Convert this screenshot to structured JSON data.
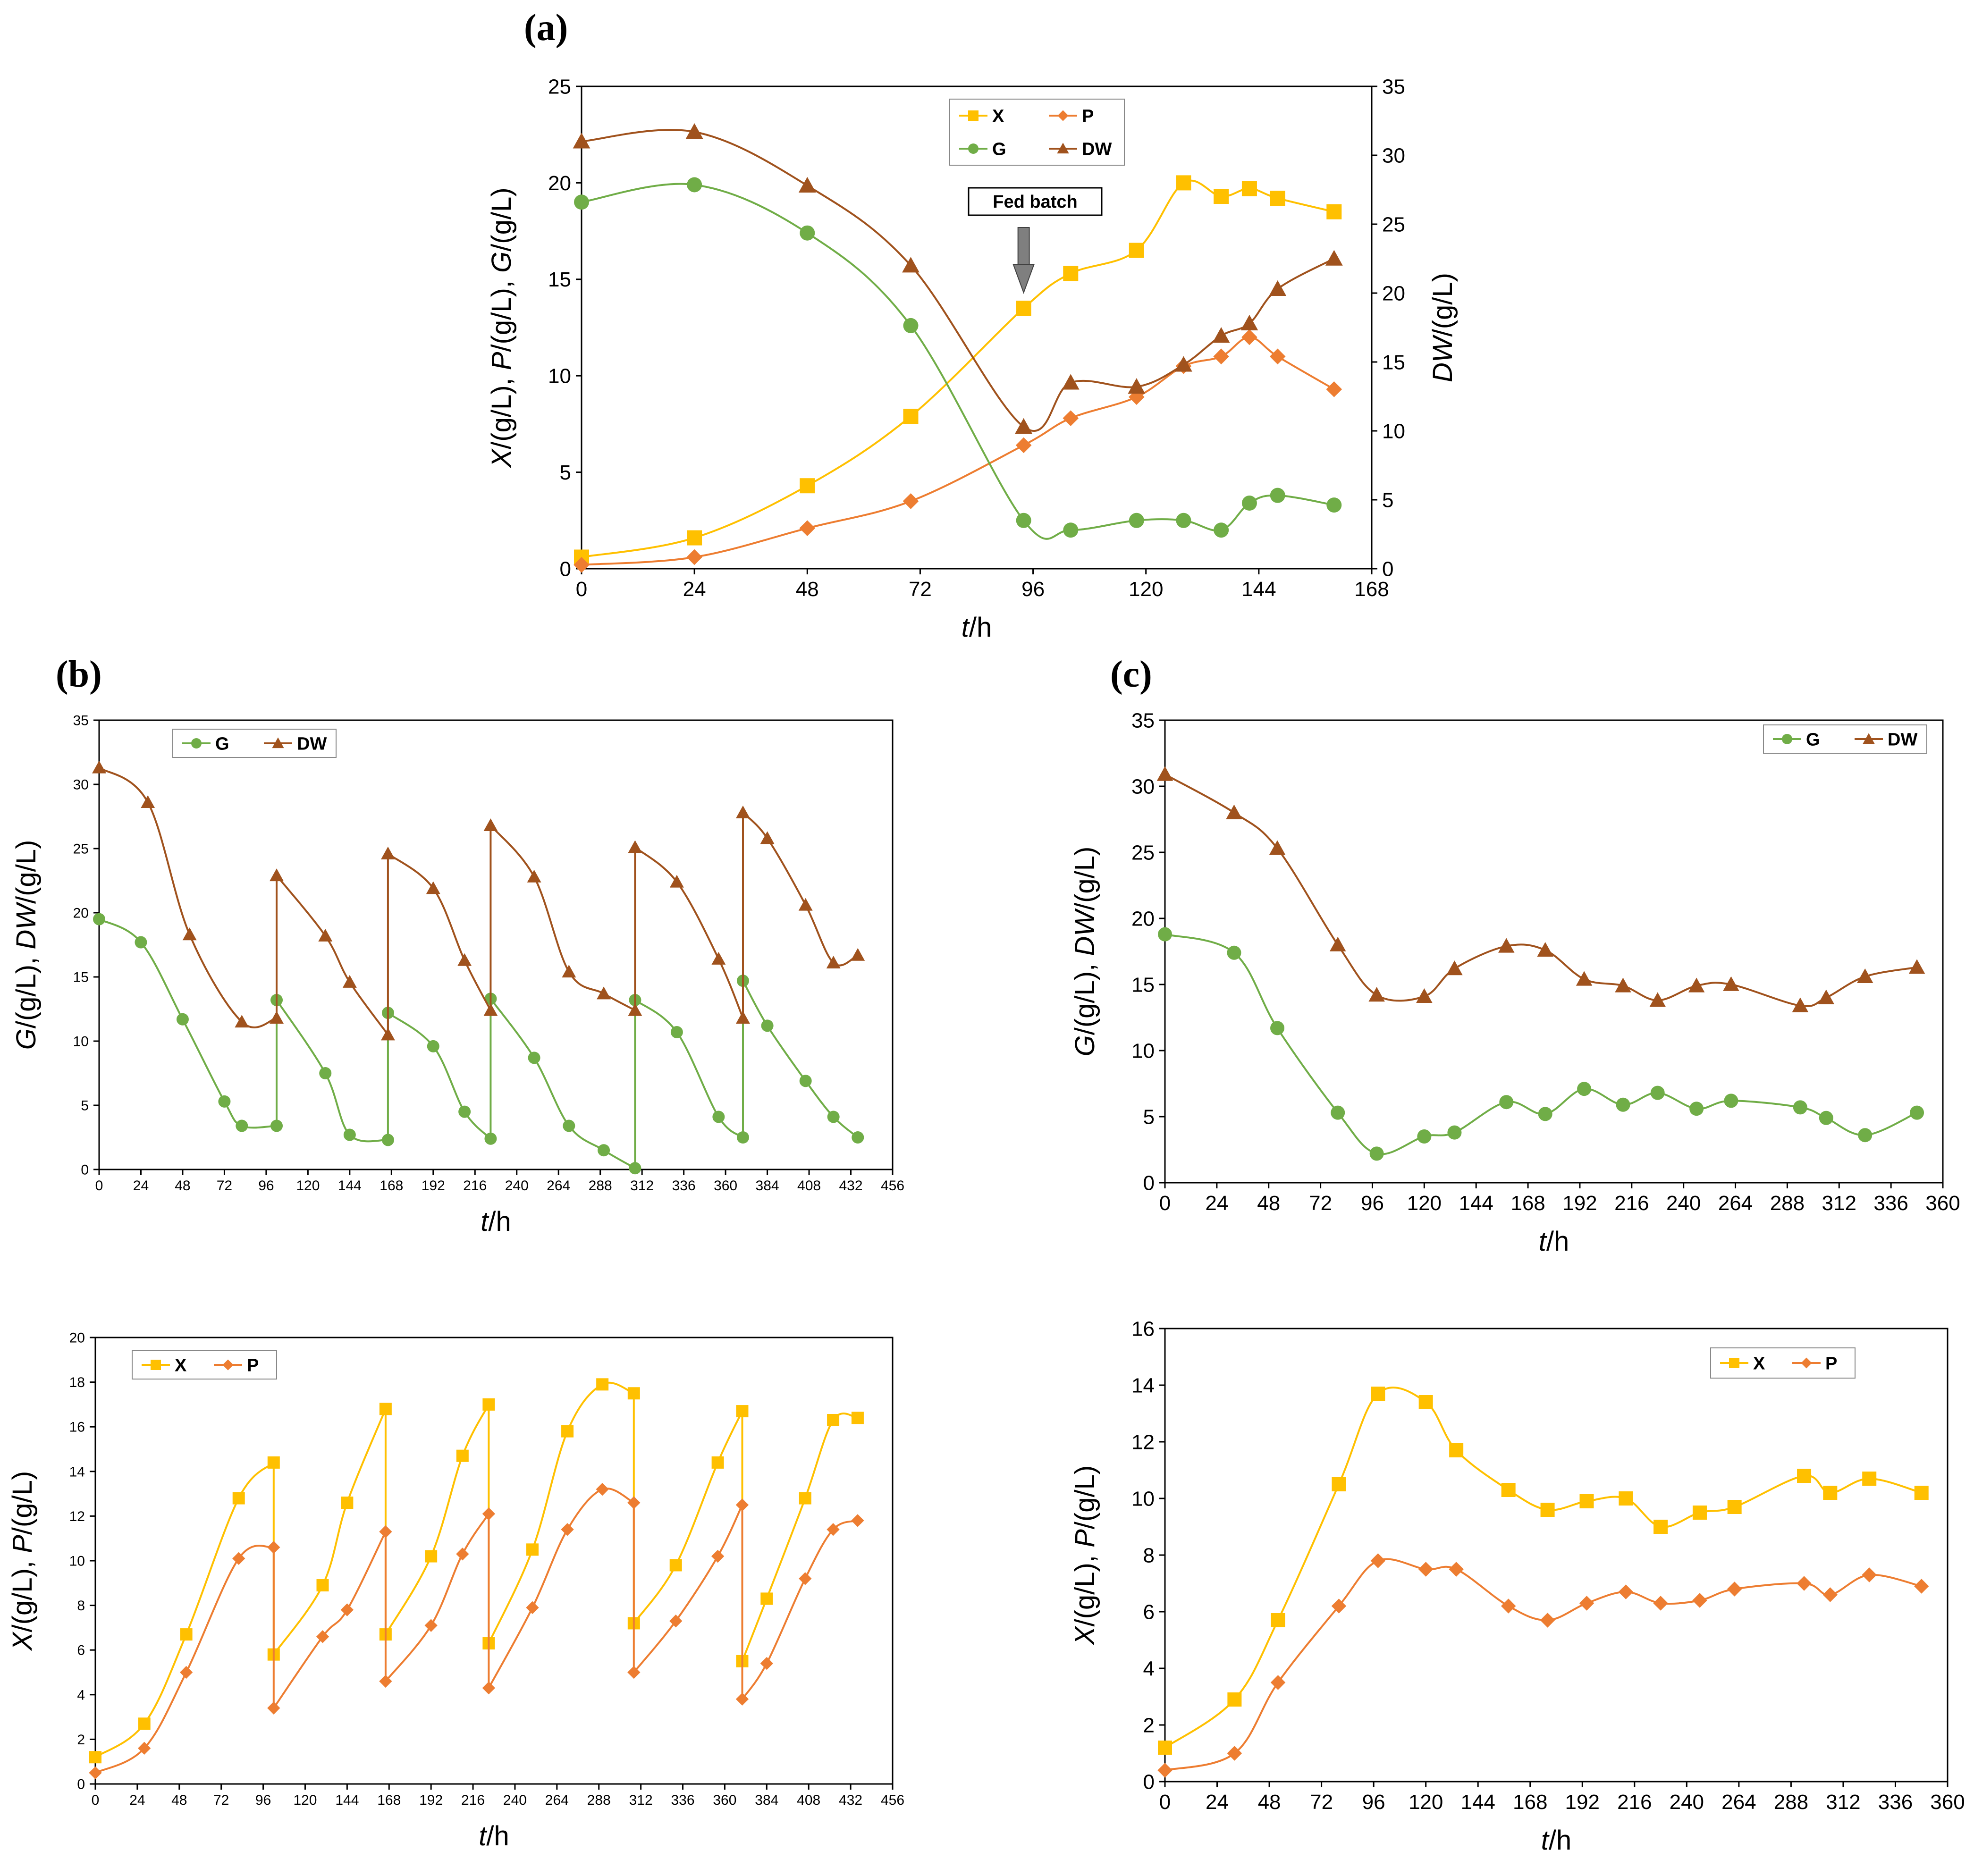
{
  "colors": {
    "X": "#FFC000",
    "P": "#ED7D31",
    "G": "#70AD47",
    "DW": "#A0521D",
    "axis": "#000000",
    "arrow": "#7F7F7F"
  },
  "chart_data": [
    {
      "id": "a",
      "type": "line",
      "panel_label": "(a)",
      "title": "",
      "xlabel_italic": "t",
      "xlabel_rest": "/h",
      "ylabel": "X/(g/L), P/(g/L), G/(g/L)",
      "y2label": "DW/(g/L)",
      "xlim": [
        0,
        168
      ],
      "xticks": [
        "0",
        "24",
        "48",
        "72",
        "96",
        "120",
        "144",
        "168"
      ],
      "ylim": [
        0,
        25
      ],
      "yticks": [
        "0",
        "5",
        "10",
        "15",
        "20",
        "25"
      ],
      "y2lim": [
        0,
        35
      ],
      "y2ticks": [
        "0",
        "5",
        "10",
        "15",
        "20",
        "25",
        "30",
        "35"
      ],
      "legend": [
        "X",
        "P",
        "G",
        "DW"
      ],
      "annotation": "Fed batch",
      "annotation_x": 94,
      "series": [
        {
          "name": "X",
          "axis": "left",
          "marker": "square",
          "x": [
            0,
            24,
            48,
            70,
            94,
            104,
            118,
            128,
            136,
            142,
            148,
            160
          ],
          "y": [
            0.6,
            1.6,
            4.3,
            7.9,
            13.5,
            15.3,
            16.5,
            20.0,
            19.3,
            19.7,
            19.2,
            18.5
          ]
        },
        {
          "name": "P",
          "axis": "left",
          "marker": "diamond",
          "x": [
            0,
            24,
            48,
            70,
            94,
            104,
            118,
            128,
            136,
            142,
            148,
            160
          ],
          "y": [
            0.2,
            0.6,
            2.1,
            3.5,
            6.4,
            7.8,
            8.9,
            10.5,
            11.0,
            12.0,
            11.0,
            9.3
          ]
        },
        {
          "name": "G",
          "axis": "left",
          "marker": "circle",
          "x": [
            0,
            24,
            48,
            70,
            94,
            104,
            118,
            128,
            136,
            142,
            148,
            160
          ],
          "y": [
            19.0,
            19.9,
            17.4,
            12.6,
            2.5,
            2.0,
            2.5,
            2.5,
            2.0,
            3.4,
            3.8,
            3.3
          ]
        },
        {
          "name": "DW",
          "axis": "right",
          "marker": "triangle",
          "x": [
            0,
            24,
            48,
            70,
            94,
            104,
            118,
            128,
            136,
            142,
            148,
            160
          ],
          "y": [
            31.0,
            31.7,
            27.8,
            22.0,
            10.3,
            13.5,
            13.2,
            14.8,
            16.9,
            17.8,
            20.3,
            22.5
          ]
        }
      ]
    },
    {
      "id": "b-top",
      "type": "line",
      "panel_label": "(b)",
      "title": "",
      "xlabel_italic": "t",
      "xlabel_rest": "/h",
      "ylabel": "G/(g/L), DW/(g/L)",
      "xlim": [
        0,
        456
      ],
      "xticks": [
        "0",
        "24",
        "48",
        "72",
        "96",
        "120",
        "144",
        "168",
        "192",
        "216",
        "240",
        "264",
        "288",
        "312",
        "336",
        "360",
        "384",
        "408",
        "432",
        "456"
      ],
      "ylim": [
        0,
        35
      ],
      "yticks": [
        "0",
        "5",
        "10",
        "15",
        "20",
        "25",
        "30",
        "35"
      ],
      "legend": [
        "G",
        "DW"
      ],
      "series": [
        {
          "name": "G",
          "marker": "circle",
          "x": [
            0,
            24,
            48,
            72,
            82,
            102,
            102,
            130,
            144,
            166,
            166,
            192,
            210,
            225,
            225,
            250,
            270,
            290,
            308,
            308,
            332,
            356,
            370,
            370,
            384,
            406,
            422,
            436
          ],
          "y": [
            19.5,
            17.7,
            11.7,
            5.3,
            3.4,
            3.4,
            13.2,
            7.5,
            2.7,
            2.3,
            12.2,
            9.6,
            4.5,
            2.4,
            13.3,
            8.7,
            3.4,
            1.5,
            0.1,
            13.2,
            10.7,
            4.1,
            2.5,
            14.7,
            11.2,
            6.9,
            4.1,
            2.5
          ]
        },
        {
          "name": "DW",
          "marker": "triangle",
          "x": [
            0,
            28,
            52,
            82,
            102,
            102,
            130,
            144,
            166,
            166,
            192,
            210,
            225,
            225,
            250,
            270,
            290,
            308,
            308,
            332,
            356,
            370,
            370,
            384,
            406,
            422,
            436
          ],
          "y": [
            31.3,
            28.6,
            18.3,
            11.5,
            11.8,
            22.9,
            18.2,
            14.6,
            10.5,
            24.6,
            21.9,
            16.3,
            12.4,
            26.8,
            22.8,
            15.4,
            13.7,
            12.4,
            25.1,
            22.4,
            16.4,
            11.8,
            27.8,
            25.8,
            20.6,
            16.1,
            16.7
          ]
        }
      ]
    },
    {
      "id": "b-bottom",
      "type": "line",
      "panel_label": "",
      "title": "",
      "xlabel_italic": "t",
      "xlabel_rest": "/h",
      "ylabel": "X/(g/L), P/(g/L)",
      "xlim": [
        0,
        456
      ],
      "xticks": [
        "0",
        "24",
        "48",
        "72",
        "96",
        "120",
        "144",
        "168",
        "192",
        "216",
        "240",
        "264",
        "288",
        "312",
        "336",
        "360",
        "384",
        "408",
        "432",
        "456"
      ],
      "ylim": [
        0,
        20
      ],
      "yticks": [
        "0",
        "2",
        "4",
        "6",
        "8",
        "10",
        "12",
        "14",
        "16",
        "18",
        "20"
      ],
      "legend": [
        "X",
        "P"
      ],
      "series": [
        {
          "name": "X",
          "marker": "square",
          "x": [
            0,
            28,
            52,
            82,
            102,
            102,
            130,
            144,
            166,
            166,
            192,
            210,
            225,
            225,
            250,
            270,
            290,
            308,
            308,
            332,
            356,
            370,
            370,
            384,
            406,
            422,
            436
          ],
          "y": [
            1.2,
            2.7,
            6.7,
            12.8,
            14.4,
            5.8,
            8.9,
            12.6,
            16.8,
            6.7,
            10.2,
            14.7,
            17.0,
            6.3,
            10.5,
            15.8,
            17.9,
            17.5,
            7.2,
            9.8,
            14.4,
            16.7,
            5.5,
            8.3,
            12.8,
            16.3,
            16.4
          ]
        },
        {
          "name": "P",
          "marker": "diamond",
          "x": [
            0,
            28,
            52,
            82,
            102,
            102,
            130,
            144,
            166,
            166,
            192,
            210,
            225,
            225,
            250,
            270,
            290,
            308,
            308,
            332,
            356,
            370,
            370,
            384,
            406,
            422,
            436
          ],
          "y": [
            0.5,
            1.6,
            5.0,
            10.1,
            10.6,
            3.4,
            6.6,
            7.8,
            11.3,
            4.6,
            7.1,
            10.3,
            12.1,
            4.3,
            7.9,
            11.4,
            13.2,
            12.6,
            5.0,
            7.3,
            10.2,
            12.5,
            3.8,
            5.4,
            9.2,
            11.4,
            11.8
          ]
        }
      ]
    },
    {
      "id": "c-top",
      "type": "line",
      "panel_label": "(c)",
      "title": "",
      "xlabel_italic": "t",
      "xlabel_rest": "/h",
      "ylabel": "G/(g/L), DW/(g/L)",
      "xlim": [
        0,
        360
      ],
      "xticks": [
        "0",
        "24",
        "48",
        "72",
        "96",
        "120",
        "144",
        "168",
        "192",
        "216",
        "240",
        "264",
        "288",
        "312",
        "336",
        "360"
      ],
      "ylim": [
        0,
        35
      ],
      "yticks": [
        "0",
        "5",
        "10",
        "15",
        "20",
        "25",
        "30",
        "35"
      ],
      "legend": [
        "G",
        "DW"
      ],
      "series": [
        {
          "name": "G",
          "marker": "circle",
          "x": [
            0,
            32,
            52,
            80,
            98,
            120,
            134,
            158,
            176,
            194,
            212,
            228,
            246,
            262,
            294,
            306,
            324,
            348
          ],
          "y": [
            18.8,
            17.4,
            11.7,
            5.3,
            2.2,
            3.5,
            3.8,
            6.1,
            5.2,
            7.1,
            5.9,
            6.8,
            5.6,
            6.2,
            5.7,
            4.9,
            3.6,
            5.3
          ]
        },
        {
          "name": "DW",
          "marker": "triangle",
          "x": [
            0,
            32,
            52,
            80,
            98,
            120,
            134,
            158,
            176,
            194,
            212,
            228,
            246,
            262,
            294,
            306,
            324,
            348
          ],
          "y": [
            30.9,
            28.0,
            25.3,
            18.0,
            14.2,
            14.1,
            16.2,
            17.9,
            17.6,
            15.4,
            14.9,
            13.8,
            14.9,
            15.0,
            13.4,
            14.0,
            15.6,
            16.3
          ]
        }
      ]
    },
    {
      "id": "c-bottom",
      "type": "line",
      "panel_label": "",
      "title": "",
      "xlabel_italic": "t",
      "xlabel_rest": "/h",
      "ylabel": "X/(g/L), P/(g/L)",
      "xlim": [
        0,
        360
      ],
      "xticks": [
        "0",
        "24",
        "48",
        "72",
        "96",
        "120",
        "144",
        "168",
        "192",
        "216",
        "240",
        "264",
        "288",
        "312",
        "336",
        "360"
      ],
      "ylim": [
        0,
        16
      ],
      "yticks": [
        "0",
        "2",
        "4",
        "6",
        "8",
        "10",
        "12",
        "14",
        "16"
      ],
      "legend": [
        "X",
        "P"
      ],
      "series": [
        {
          "name": "X",
          "marker": "square",
          "x": [
            0,
            32,
            52,
            80,
            98,
            120,
            134,
            158,
            176,
            194,
            212,
            228,
            246,
            262,
            294,
            306,
            324,
            348
          ],
          "y": [
            1.2,
            2.9,
            5.7,
            10.5,
            13.7,
            13.4,
            11.7,
            10.3,
            9.6,
            9.9,
            10.0,
            9.0,
            9.5,
            9.7,
            10.8,
            10.2,
            10.7,
            10.2
          ]
        },
        {
          "name": "P",
          "marker": "diamond",
          "x": [
            0,
            32,
            52,
            80,
            98,
            120,
            134,
            158,
            176,
            194,
            212,
            228,
            246,
            262,
            294,
            306,
            324,
            348
          ],
          "y": [
            0.4,
            1.0,
            3.5,
            6.2,
            7.8,
            7.5,
            7.5,
            6.2,
            5.7,
            6.3,
            6.7,
            6.3,
            6.4,
            6.8,
            7.0,
            6.6,
            7.3,
            6.9
          ]
        }
      ]
    }
  ]
}
